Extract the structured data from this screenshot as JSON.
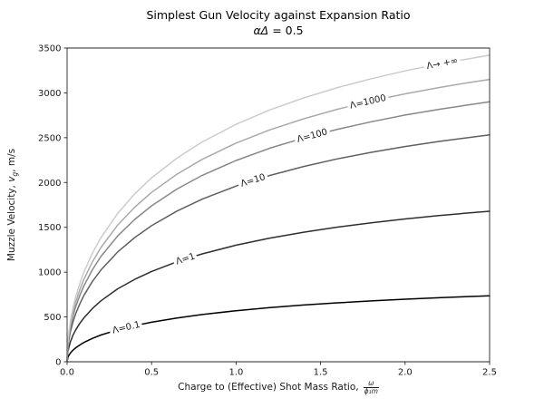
{
  "figure": {
    "title": "Simplest Gun Velocity against Expansion Ratio",
    "subtitle_greek": "αΔ",
    "subtitle_rest": " = 0.5"
  },
  "chart_data": {
    "type": "line",
    "title": "Simplest Gun Velocity against Expansion Ratio",
    "subtitle": "αΔ = 0.5",
    "xlabel": "Charge to (Effective) Shot Mass Ratio, ω/(ϕ₁m)",
    "xlabel_parts": {
      "prefix": "Charge to (Effective) Shot Mass Ratio,",
      "frac_numerator": "ω",
      "frac_denominator": "ϕ₁m"
    },
    "ylabel": "Muzzle Velocity, vg, m/s",
    "ylabel_parts": {
      "prefix": "Muzzle Velocity, ",
      "variable": "v",
      "subscript": "g",
      "suffix": ", m/s"
    },
    "xlim": [
      0,
      2.5
    ],
    "ylim": [
      0,
      3500
    ],
    "xticks": [
      0.0,
      0.5,
      1.0,
      1.5,
      2.0,
      2.5
    ],
    "xtick_labels": [
      "0.0",
      "0.5",
      "1.0",
      "1.5",
      "2.0",
      "2.5"
    ],
    "yticks": [
      0,
      500,
      1000,
      1500,
      2000,
      2500,
      3000,
      3500
    ],
    "ytick_labels": [
      "0",
      "500",
      "1000",
      "1500",
      "2000",
      "2500",
      "3000",
      "3500"
    ],
    "grid": false,
    "legend_position": "inline-curve-labels",
    "x": [
      0,
      0.005,
      0.01,
      0.02,
      0.035,
      0.05,
      0.075,
      0.1,
      0.15,
      0.2,
      0.3,
      0.4,
      0.5,
      0.65,
      0.8,
      1.0,
      1.2,
      1.4,
      1.6,
      1.8,
      2.0,
      2.2,
      2.35,
      2.5
    ],
    "series": [
      {
        "name": "lambda-inf",
        "label": "Λ→ +∞",
        "color": "#cccccc",
        "label_x": 2.22,
        "label_y": 3328,
        "label_rotation_deg": -11,
        "values": [
          0,
          229,
          324,
          457,
          602,
          717,
          872,
          1001,
          1212,
          1384,
          1657,
          1873,
          2052,
          2272,
          2453,
          2649,
          2810,
          2944,
          3059,
          3158,
          3245,
          3321,
          3372,
          3420
        ]
      },
      {
        "name": "lambda-1000",
        "label": "Λ=1000",
        "color": "#aaaaaa",
        "label_x": 1.78,
        "label_y": 2900,
        "label_rotation_deg": -13,
        "values": [
          0,
          211,
          298,
          421,
          554,
          660,
          803,
          922,
          1116,
          1275,
          1526,
          1725,
          1890,
          2093,
          2259,
          2440,
          2588,
          2711,
          2817,
          2909,
          2989,
          3059,
          3106,
          3150
        ]
      },
      {
        "name": "lambda-100",
        "label": "Λ=100",
        "color": "#888888",
        "label_x": 1.45,
        "label_y": 2522,
        "label_rotation_deg": -15,
        "values": [
          0,
          194,
          275,
          388,
          511,
          608,
          739,
          849,
          1028,
          1174,
          1405,
          1588,
          1740,
          1927,
          2080,
          2246,
          2383,
          2497,
          2594,
          2678,
          2752,
          2816,
          2859,
          2900
        ]
      },
      {
        "name": "lambda-10",
        "label": "Λ=10",
        "color": "#606060",
        "label_x": 1.1,
        "label_y": 2023,
        "label_rotation_deg": -17,
        "values": [
          0,
          169,
          240,
          338,
          445,
          531,
          645,
          741,
          897,
          1024,
          1226,
          1386,
          1518,
          1681,
          1815,
          1960,
          2079,
          2179,
          2264,
          2337,
          2401,
          2458,
          2495,
          2531
        ]
      },
      {
        "name": "lambda-1",
        "label": "Λ=1",
        "color": "#2e2e2e",
        "label_x": 0.7,
        "label_y": 1147,
        "label_rotation_deg": -18,
        "values": [
          0,
          112,
          159,
          224,
          296,
          352,
          428,
          491,
          595,
          680,
          814,
          920,
          1008,
          1116,
          1204,
          1301,
          1380,
          1446,
          1502,
          1551,
          1593,
          1631,
          1656,
          1679
        ]
      },
      {
        "name": "lambda-0.1",
        "label": "Λ=0.1",
        "color": "#000000",
        "label_x": 0.35,
        "label_y": 381,
        "label_rotation_deg": -13,
        "values": [
          0,
          49,
          70,
          98,
          129,
          154,
          187,
          215,
          261,
          298,
          356,
          403,
          441,
          489,
          527,
          570,
          604,
          633,
          658,
          679,
          698,
          714,
          725,
          735
        ]
      }
    ]
  }
}
